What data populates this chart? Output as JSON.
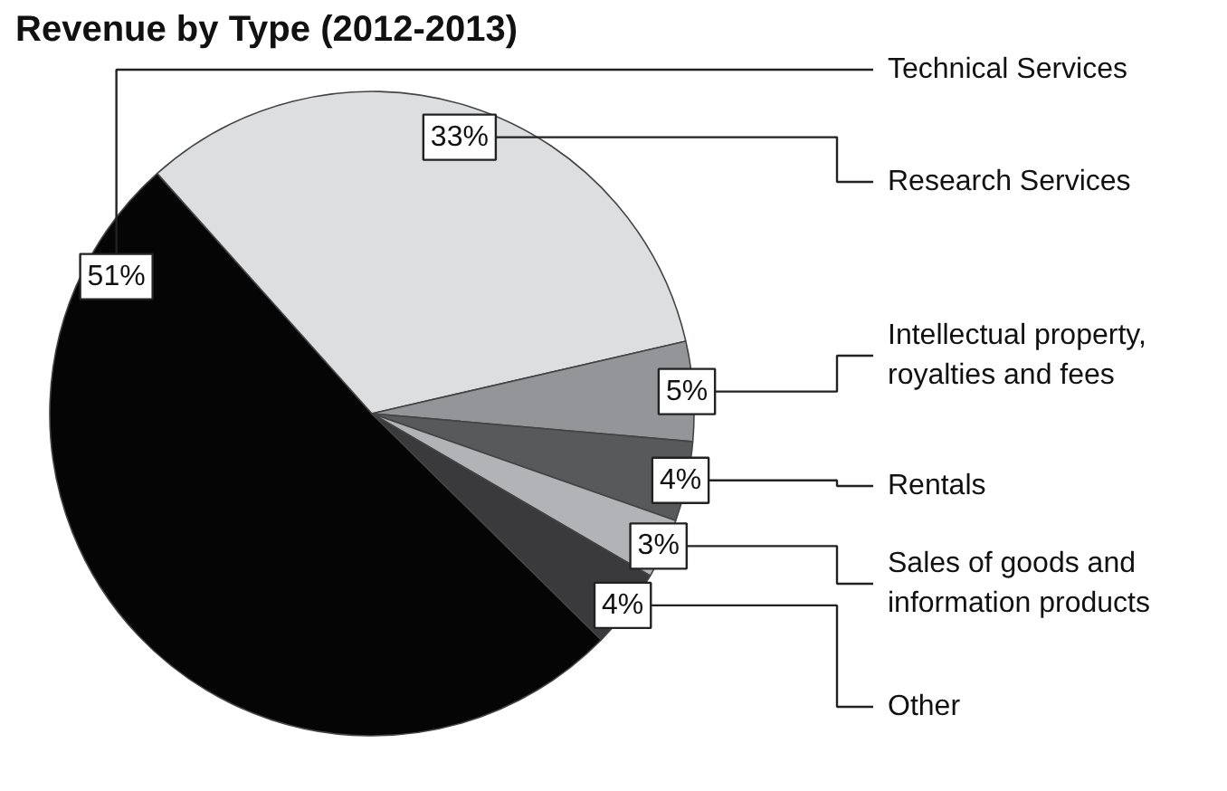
{
  "chart_data": {
    "type": "pie",
    "title": "Revenue by Type (2012-2013)",
    "categories": [
      "Technical Services",
      "Research Services",
      "Intellectual property, royalties and fees",
      "Rentals",
      "Sales of goods and information products",
      "Other"
    ],
    "values": [
      51,
      33,
      5,
      4,
      3,
      4
    ],
    "colors": [
      "#050505",
      "#dcdee0",
      "#939598",
      "#58595b",
      "#b1b3b6",
      "#3a3a3c"
    ],
    "value_labels": [
      "51%",
      "33%",
      "5%",
      "4%",
      "3%",
      "4%"
    ]
  }
}
